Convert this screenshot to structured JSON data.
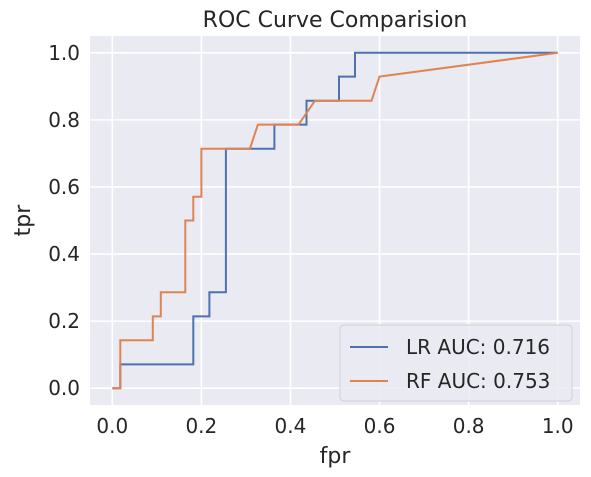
{
  "chart_data": {
    "type": "line",
    "title": "ROC Curve Comparision",
    "xlabel": "fpr",
    "ylabel": "tpr",
    "xlim": [
      -0.05,
      1.05
    ],
    "ylim": [
      -0.05,
      1.05
    ],
    "xticks": [
      0.0,
      0.2,
      0.4,
      0.6,
      0.8,
      1.0
    ],
    "yticks": [
      0.0,
      0.2,
      0.4,
      0.6,
      0.8,
      1.0
    ],
    "xtick_labels": [
      "0.0",
      "0.2",
      "0.4",
      "0.6",
      "0.8",
      "1.0"
    ],
    "ytick_labels": [
      "0.0",
      "0.2",
      "0.4",
      "0.6",
      "0.8",
      "1.0"
    ],
    "grid": true,
    "background": "#eaeaf2",
    "legend_position": "lower-right",
    "series": [
      {
        "name": "LR AUC: 0.716",
        "color": "#4c72b0",
        "x": [
          0.0,
          0.018,
          0.018,
          0.018,
          0.182,
          0.182,
          0.218,
          0.218,
          0.255,
          0.255,
          0.364,
          0.364,
          0.436,
          0.436,
          0.509,
          0.509,
          0.545,
          0.545,
          1.0
        ],
        "y": [
          0.0,
          0.0,
          0.071,
          0.071,
          0.071,
          0.214,
          0.214,
          0.286,
          0.286,
          0.714,
          0.714,
          0.786,
          0.786,
          0.857,
          0.857,
          0.929,
          0.929,
          1.0,
          1.0
        ]
      },
      {
        "name": "RF AUC: 0.753",
        "color": "#dd8452",
        "x": [
          0.0,
          0.018,
          0.018,
          0.091,
          0.091,
          0.109,
          0.109,
          0.164,
          0.164,
          0.182,
          0.182,
          0.2,
          0.2,
          0.309,
          0.327,
          0.418,
          0.455,
          0.582,
          0.6,
          1.0
        ],
        "y": [
          0.0,
          0.0,
          0.143,
          0.143,
          0.214,
          0.214,
          0.286,
          0.286,
          0.5,
          0.5,
          0.571,
          0.571,
          0.714,
          0.714,
          0.786,
          0.786,
          0.857,
          0.857,
          0.929,
          1.0
        ]
      }
    ]
  }
}
